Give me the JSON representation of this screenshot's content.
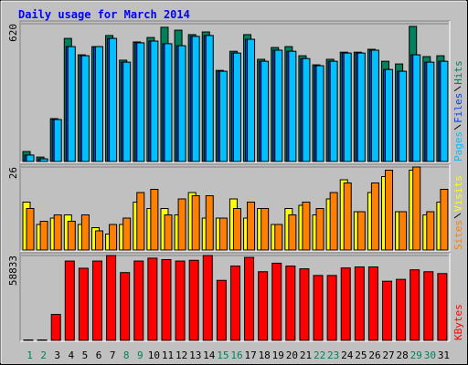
{
  "title": "Daily usage for March 2014",
  "chart_data": [
    {
      "type": "bar",
      "ylim": [
        0,
        620
      ],
      "yticks": [
        620
      ],
      "series": [
        {
          "name": "Hits",
          "color": "#00805c",
          "values": [
            45,
            20,
            193,
            554,
            480,
            517,
            567,
            456,
            538,
            558,
            604,
            591,
            571,
            583,
            410,
            496,
            571,
            460,
            513,
            517,
            476,
            435,
            460,
            492,
            492,
            505,
            451,
            439,
            608,
            472,
            476
          ]
        },
        {
          "name": "Files",
          "color": "#0040ff",
          "values": [
            29,
            12,
            189,
            517,
            476,
            517,
            554,
            447,
            534,
            542,
            530,
            521,
            563,
            567,
            406,
            488,
            550,
            451,
            501,
            496,
            463,
            431,
            451,
            488,
            488,
            501,
            414,
            406,
            480,
            447,
            451
          ]
        },
        {
          "name": "Pages",
          "color": "#00c0ff",
          "values": [
            29,
            12,
            189,
            517,
            476,
            517,
            554,
            447,
            534,
            542,
            530,
            521,
            563,
            567,
            406,
            488,
            550,
            451,
            501,
            496,
            463,
            431,
            451,
            488,
            488,
            501,
            414,
            406,
            480,
            447,
            451
          ]
        }
      ]
    },
    {
      "type": "bar",
      "ylim": [
        0,
        26
      ],
      "yticks": [
        26
      ],
      "series": [
        {
          "name": "Visits",
          "color": "#ffff00",
          "values": [
            15,
            8,
            10,
            11,
            8,
            7,
            5,
            8,
            15,
            13,
            13,
            11,
            18,
            10,
            10,
            16,
            10,
            13,
            8,
            13,
            14,
            11,
            16,
            22,
            12,
            18,
            23,
            12,
            25,
            11,
            15
          ]
        },
        {
          "name": "Sites",
          "color": "#ff8000",
          "values": [
            13,
            9,
            11,
            9,
            11,
            6,
            8,
            10,
            18,
            19,
            11,
            16,
            17,
            17,
            10,
            13,
            15,
            13,
            8,
            11,
            15,
            13,
            18,
            21,
            12,
            21,
            25,
            12,
            26,
            12,
            19
          ]
        }
      ]
    },
    {
      "type": "bar",
      "ylim": [
        0,
        58833
      ],
      "yticks": [
        58833
      ],
      "categories": [
        "1",
        "2",
        "3",
        "4",
        "5",
        "6",
        "7",
        "8",
        "9",
        "10",
        "11",
        "12",
        "13",
        "14",
        "15",
        "16",
        "17",
        "18",
        "19",
        "20",
        "21",
        "22",
        "23",
        "24",
        "25",
        "26",
        "27",
        "28",
        "29",
        "30",
        "31"
      ],
      "category_colors": [
        "#00805c",
        "#00805c",
        "#000000",
        "#000000",
        "#000000",
        "#000000",
        "#000000",
        "#00805c",
        "#00805c",
        "#000000",
        "#000000",
        "#000000",
        "#000000",
        "#000000",
        "#00805c",
        "#00805c",
        "#000000",
        "#000000",
        "#000000",
        "#000000",
        "#000000",
        "#00805c",
        "#00805c",
        "#000000",
        "#000000",
        "#000000",
        "#000000",
        "#000000",
        "#00805c",
        "#00805c",
        "#000000"
      ],
      "series": [
        {
          "name": "KBytes",
          "color": "#ff0000",
          "values": [
            300,
            300,
            18000,
            55000,
            50000,
            55000,
            58833,
            47000,
            55000,
            57000,
            56000,
            55000,
            55500,
            58833,
            41600,
            51500,
            57500,
            47600,
            53500,
            51500,
            49600,
            45000,
            45000,
            50200,
            50900,
            50900,
            41000,
            42300,
            48900,
            47600,
            46300
          ]
        }
      ]
    }
  ]
}
